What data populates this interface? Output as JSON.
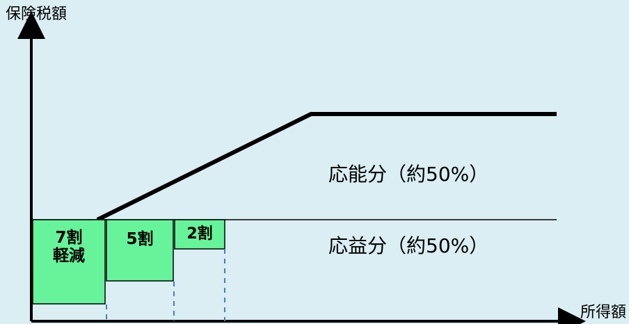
{
  "diagram": {
    "y_axis_label": "保険税額",
    "x_axis_label": "所得額",
    "upper_region_label": "応能分（約50%）",
    "lower_region_label": "応益分（約50%）",
    "reduction_boxes": [
      {
        "label": "7割\n軽減",
        "reduction_percent": 70
      },
      {
        "label": "5割",
        "reduction_percent": 50
      },
      {
        "label": "2割",
        "reduction_percent": 20
      }
    ]
  },
  "colors": {
    "background": "#daeef3",
    "box_fill": "#66f39a",
    "box_border": "#000000",
    "axis": "#000000",
    "guide_dashed": "#3f7fc2"
  }
}
